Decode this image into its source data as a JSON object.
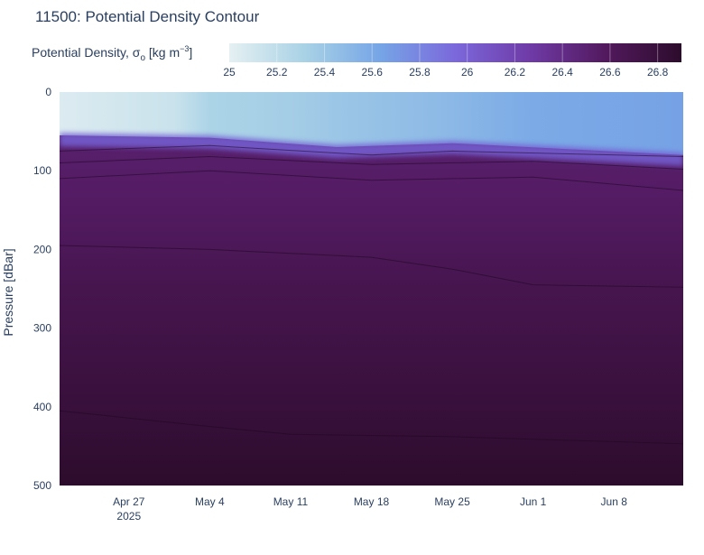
{
  "chart_data": {
    "type": "heatmap",
    "title": "11500: Potential Density Contour",
    "ylabel": "Pressure [dBar]",
    "xlabel": "",
    "colorbar": {
      "title_prefix": "Potential Density, σ",
      "title_sub": "o",
      "title_suffix_a": " [kg m",
      "title_sup": "−3",
      "title_suffix_b": "]",
      "ticks": [
        "25",
        "25.2",
        "25.4",
        "25.6",
        "25.8",
        "26",
        "26.2",
        "26.4",
        "26.6",
        "26.8"
      ],
      "range": [
        25.0,
        26.9
      ],
      "colorscale": [
        "#e5f0f2",
        "#a9d2e6",
        "#76a5e6",
        "#7b68db",
        "#6f3aa6",
        "#52195d",
        "#2c0c2c"
      ]
    },
    "y_ticks": [
      "0",
      "100",
      "200",
      "300",
      "400",
      "500"
    ],
    "y_range": [
      0,
      500
    ],
    "y_reversed": true,
    "x_ticks": [
      {
        "label": "Apr 27",
        "sub": "2025"
      },
      {
        "label": "May 4",
        "sub": ""
      },
      {
        "label": "May 11",
        "sub": ""
      },
      {
        "label": "May 18",
        "sub": ""
      },
      {
        "label": "May 25",
        "sub": ""
      },
      {
        "label": "Jun 1",
        "sub": ""
      },
      {
        "label": "Jun 8",
        "sub": ""
      }
    ],
    "x_range": [
      "2025-04-21",
      "2025-06-14"
    ],
    "x_tick_dates": [
      "2025-04-27",
      "2025-05-04",
      "2025-05-11",
      "2025-05-18",
      "2025-05-25",
      "2025-06-01",
      "2025-06-08"
    ],
    "surface_density_by_date": [
      {
        "date": "2025-04-21",
        "value": 25.05
      },
      {
        "date": "2025-05-01",
        "value": 25.15
      },
      {
        "date": "2025-05-04",
        "value": 25.3
      },
      {
        "date": "2025-05-11",
        "value": 25.35
      },
      {
        "date": "2025-05-15",
        "value": 25.4
      },
      {
        "date": "2025-05-25",
        "value": 25.5
      },
      {
        "date": "2025-06-01",
        "value": 25.6
      },
      {
        "date": "2025-06-14",
        "value": 25.65
      }
    ],
    "mixed_layer_depth_dbar": [
      {
        "date": "2025-04-21",
        "value": 55
      },
      {
        "date": "2025-05-04",
        "value": 58
      },
      {
        "date": "2025-05-15",
        "value": 70
      },
      {
        "date": "2025-05-25",
        "value": 65
      },
      {
        "date": "2025-06-14",
        "value": 80
      }
    ],
    "contour_lines": [
      {
        "level": 26.3,
        "points": [
          [
            "2025-04-21",
            75
          ],
          [
            "2025-05-04",
            68
          ],
          [
            "2025-05-18",
            80
          ],
          [
            "2025-05-25",
            75
          ],
          [
            "2025-06-14",
            82
          ]
        ]
      },
      {
        "level": 26.4,
        "points": [
          [
            "2025-04-21",
            90
          ],
          [
            "2025-05-04",
            82
          ],
          [
            "2025-05-18",
            92
          ],
          [
            "2025-06-01",
            88
          ],
          [
            "2025-06-14",
            98
          ]
        ]
      },
      {
        "level": 26.5,
        "points": [
          [
            "2025-04-21",
            110
          ],
          [
            "2025-05-04",
            100
          ],
          [
            "2025-05-18",
            112
          ],
          [
            "2025-06-01",
            108
          ],
          [
            "2025-06-14",
            125
          ]
        ]
      },
      {
        "level": 26.6,
        "points": [
          [
            "2025-04-21",
            195
          ],
          [
            "2025-05-04",
            200
          ],
          [
            "2025-05-18",
            210
          ],
          [
            "2025-05-25",
            225
          ],
          [
            "2025-06-01",
            245
          ],
          [
            "2025-06-14",
            248
          ]
        ]
      },
      {
        "level": 26.8,
        "points": [
          [
            "2025-04-21",
            405
          ],
          [
            "2025-05-04",
            425
          ],
          [
            "2025-05-11",
            435
          ],
          [
            "2025-05-25",
            438
          ],
          [
            "2025-06-14",
            447
          ]
        ]
      }
    ]
  }
}
